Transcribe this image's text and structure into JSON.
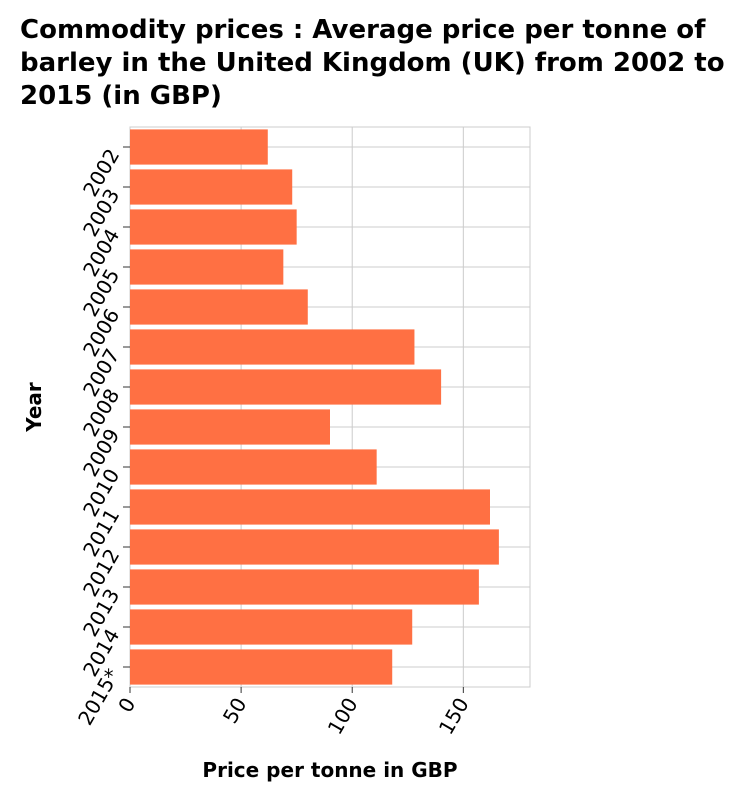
{
  "chart_data": {
    "type": "bar",
    "orientation": "horizontal",
    "title": "Commodity prices : Average price per tonne of barley in the United Kingdom (UK) from 2002 to 2015 (in GBP)",
    "xlabel": "Price per tonne in GBP",
    "ylabel": "Year",
    "categories": [
      "2002",
      "2003",
      "2004",
      "2005",
      "2006",
      "2007",
      "2008",
      "2009",
      "2010",
      "2011",
      "2012",
      "2013",
      "2014",
      "2015*"
    ],
    "values": [
      62,
      73,
      75,
      69,
      80,
      128,
      140,
      90,
      111,
      162,
      166,
      157,
      127,
      118
    ],
    "xlim": [
      0,
      180
    ],
    "xticks": [
      0,
      50,
      100,
      150
    ],
    "bar_color": "#ff7043",
    "grid": true
  }
}
